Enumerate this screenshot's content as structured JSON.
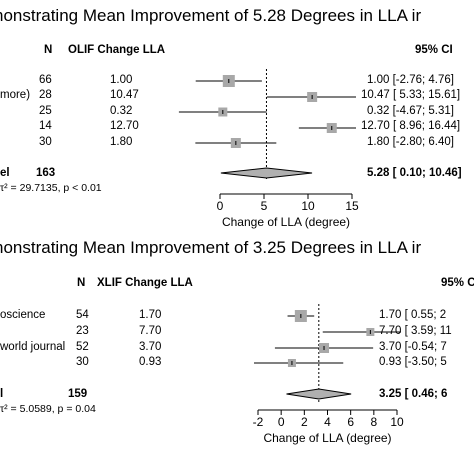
{
  "chart_data": [
    {
      "type": "forest",
      "title": "nonstrating Mean Improvement of 5.28 Degrees in LLA ir",
      "headers": {
        "n": "N",
        "estimate": "OLIF Change LLA",
        "ci": "95% CI"
      },
      "xlabel": "Change of LLA (degree)",
      "xlim": [
        -5,
        15
      ],
      "xticks": [
        0,
        5,
        10,
        15
      ],
      "reference_line": 5.28,
      "studies": [
        {
          "label": "",
          "n": "66",
          "estimate_text": "1.00",
          "ci_text": "1.00  [-2.76;  4.76]",
          "mean": 1.0,
          "lo": -2.76,
          "hi": 4.76
        },
        {
          "label": "more)",
          "n": "28",
          "estimate_text": "10.47",
          "ci_text": "10.47  [ 5.33; 15.61]",
          "mean": 10.47,
          "lo": 5.33,
          "hi": 15.61
        },
        {
          "label": "",
          "n": "25",
          "estimate_text": "0.32",
          "ci_text": "0.32  [-4.67;  5.31]",
          "mean": 0.32,
          "lo": -4.67,
          "hi": 5.31
        },
        {
          "label": "",
          "n": "14",
          "estimate_text": "12.70",
          "ci_text": "12.70  [ 8.96; 16.44]",
          "mean": 12.7,
          "lo": 8.96,
          "hi": 16.44
        },
        {
          "label": "",
          "n": "30",
          "estimate_text": "1.80",
          "ci_text": "1.80  [-2.80;  6.40]",
          "mean": 1.8,
          "lo": -2.8,
          "hi": 6.4
        }
      ],
      "overall": {
        "label": "el",
        "n": "163",
        "ci_text": "5.28  [ 0.10; 10.46]",
        "mean": 5.28,
        "lo": 0.1,
        "hi": 10.46
      },
      "heterogeneity": "τ² = 29.7135, p < 0.01"
    },
    {
      "type": "forest",
      "title": "nonstrating Mean Improvement of 3.25 Degrees in LLA ir",
      "headers": {
        "n": "N",
        "estimate": "XLIF Change LLA",
        "ci": "95% C"
      },
      "xlabel": "Change of LLA (degree)",
      "xlim": [
        -2,
        10
      ],
      "xticks": [
        -2,
        0,
        2,
        4,
        6,
        8,
        10
      ],
      "reference_line": 3.25,
      "studies": [
        {
          "label": "oscience",
          "n": "54",
          "estimate_text": "1.70",
          "ci_text": "1.70  [ 0.55;  2",
          "mean": 1.7,
          "lo": 0.55,
          "hi": 2.85
        },
        {
          "label": "",
          "n": "23",
          "estimate_text": "7.70",
          "ci_text": "7.70  [ 3.59; 11",
          "mean": 7.7,
          "lo": 3.59,
          "hi": 11.81
        },
        {
          "label": "world journal",
          "n": "52",
          "estimate_text": "3.70",
          "ci_text": "3.70  [-0.54;  7",
          "mean": 3.7,
          "lo": -0.54,
          "hi": 7.94
        },
        {
          "label": "",
          "n": "30",
          "estimate_text": "0.93",
          "ci_text": "0.93  [-3.50;  5",
          "mean": 0.93,
          "lo": -3.5,
          "hi": 5.36
        }
      ],
      "overall": {
        "label": "l",
        "n": "159",
        "ci_text": "3.25  [ 0.46;  6",
        "mean": 3.25,
        "lo": 0.46,
        "hi": 6.04
      },
      "heterogeneity": "τ² = 5.0589, p = 0.04"
    }
  ]
}
